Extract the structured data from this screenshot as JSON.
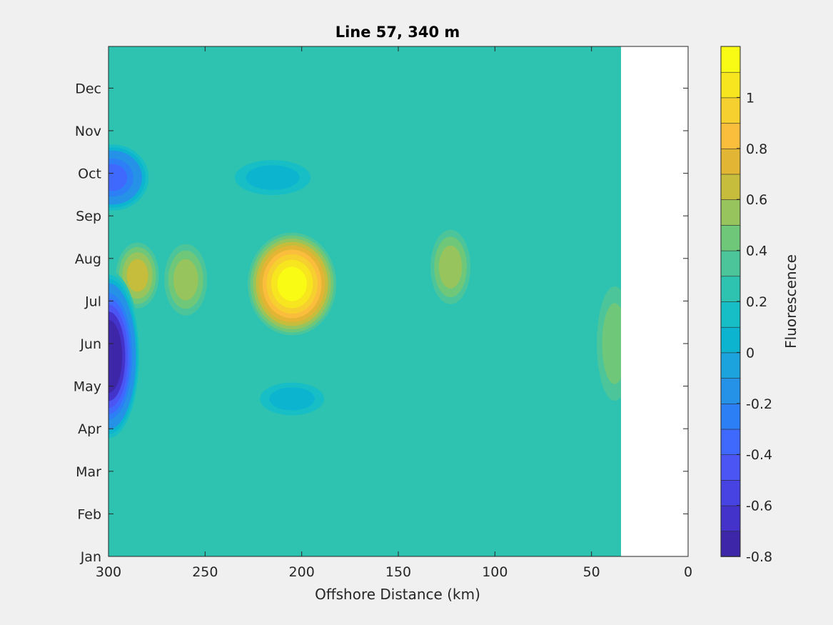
{
  "chart_data": {
    "type": "heatmap",
    "subtype": "filled-contour",
    "title": "Line 57, 340 m",
    "xlabel": "Offshore Distance (km)",
    "ylabel": "",
    "xlim": [
      300,
      0
    ],
    "x_reversed": true,
    "data_x_extent": [
      300,
      35
    ],
    "x_ticks": [
      "300",
      "250",
      "200",
      "150",
      "100",
      "50",
      "0"
    ],
    "x_tick_values": [
      300,
      250,
      200,
      150,
      100,
      50,
      0
    ],
    "y_ticks": [
      "Jan",
      "Feb",
      "Mar",
      "Apr",
      "May",
      "Jun",
      "Jul",
      "Aug",
      "Sep",
      "Oct",
      "Nov",
      "Dec"
    ],
    "colorbar": {
      "label": "Fluorescence",
      "range": [
        -0.8,
        1.2
      ],
      "step": 0.1,
      "tick_labels": [
        "1",
        "0.8",
        "0.6",
        "0.4",
        "0.2",
        "0",
        "-0.2",
        "-0.4",
        "-0.6",
        "-0.8"
      ],
      "tick_values": [
        1,
        0.8,
        0.6,
        0.4,
        0.2,
        0,
        -0.2,
        -0.4,
        -0.6,
        -0.8
      ],
      "colors": [
        "#3e26a8",
        "#4433cb",
        "#4743e3",
        "#4a55f4",
        "#3f69fd",
        "#2d7ff6",
        "#2591e7",
        "#1ca3de",
        "#0db4d0",
        "#17bec5",
        "#2ec3b1",
        "#4cc59a",
        "#6fc77a",
        "#97c45c",
        "#c6bd3c",
        "#e3b534",
        "#fbbd3c",
        "#f6d02e",
        "#f6e51f",
        "#f9fb14"
      ]
    },
    "background_level": 0.25,
    "features": [
      {
        "name": "summer fluorescence maximum",
        "distance_km": 205,
        "month": 6.4,
        "peak_value": 1.1
      },
      {
        "name": "nearshore-offshore summer high",
        "distance_km": 285,
        "month": 6.6,
        "peak_value": 0.7
      },
      {
        "name": "summer high",
        "distance_km": 260,
        "month": 6.5,
        "peak_value": 0.6
      },
      {
        "name": "summer high",
        "distance_km": 123,
        "month": 6.8,
        "peak_value": 0.5
      },
      {
        "name": "spring low",
        "distance_km": 300,
        "month": 4.7,
        "peak_value": -0.8
      },
      {
        "name": "autumn low",
        "distance_km": 298,
        "month": 8.9,
        "peak_value": -0.4
      },
      {
        "name": "autumn low",
        "distance_km": 215,
        "month": 8.9,
        "peak_value": -0.05
      },
      {
        "name": "spring low",
        "distance_km": 205,
        "month": 3.7,
        "peak_value": -0.05
      },
      {
        "name": "coastal high",
        "distance_km": 38,
        "month": 5.0,
        "peak_value": 0.4
      },
      {
        "name": "winter low band",
        "distance_km": 150,
        "month": 0.8,
        "peak_value": 0.1
      }
    ]
  }
}
